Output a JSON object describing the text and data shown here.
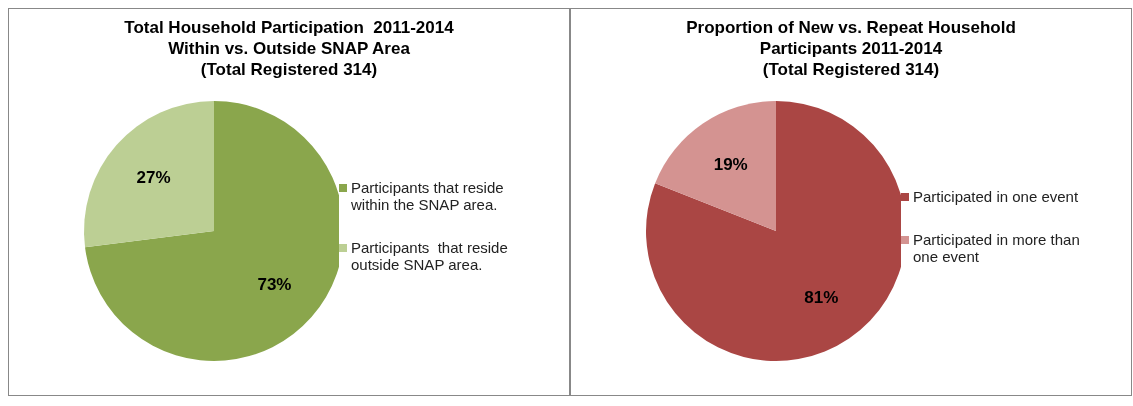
{
  "chart_data": [
    {
      "type": "pie",
      "title": "Total Household Participation  2011-2014\nWithin vs. Outside SNAP Area\n(Total Registered 314)",
      "categories": [
        "Participants that reside within the SNAP area.",
        "Participants  that reside outside SNAP area."
      ],
      "values": [
        73,
        27
      ],
      "colors": [
        "#8aa64c",
        "#bccf94"
      ],
      "value_labels": [
        "73%",
        "27%"
      ],
      "legend": "right"
    },
    {
      "type": "pie",
      "title": "Proportion of New vs. Repeat Household\nParticipants 2011-2014\n(Total Registered 314)",
      "categories": [
        "Participated in one event",
        "Participated in more than one event"
      ],
      "values": [
        81,
        19
      ],
      "colors": [
        "#aa4644",
        "#d49391"
      ],
      "value_labels": [
        "81%",
        "19%"
      ],
      "legend": "right"
    }
  ]
}
